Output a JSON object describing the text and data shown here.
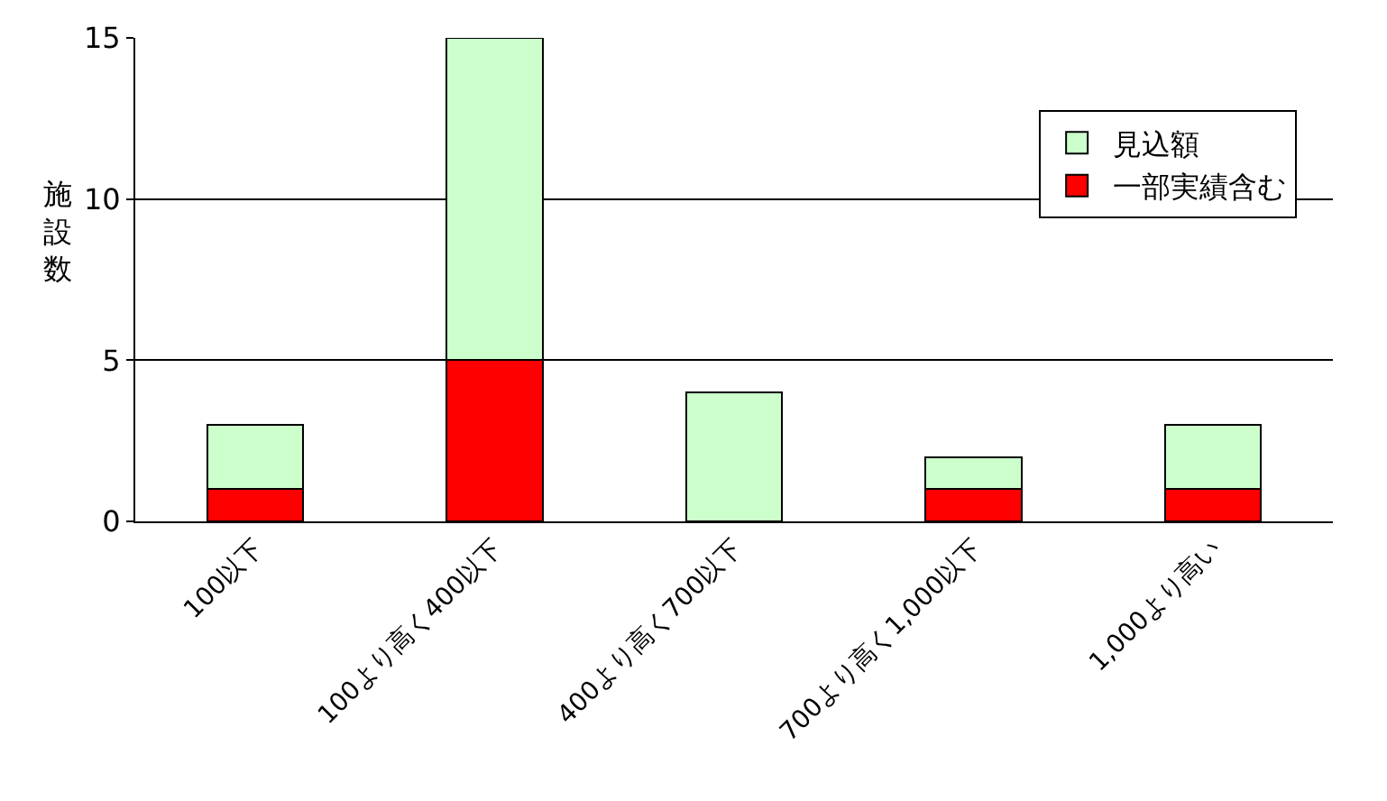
{
  "chart_data": {
    "type": "bar",
    "stacked": true,
    "ylabel": "施設数",
    "categories": [
      "100以下",
      "100より高く400以下",
      "400より高く700以下",
      "700より高く1,000以下",
      "1,000より高い"
    ],
    "series": [
      {
        "name": "一部実績含む",
        "color": "#ff0000",
        "values": [
          1,
          5,
          0,
          1,
          1
        ]
      },
      {
        "name": "見込額",
        "color": "#ccffcc",
        "values": [
          2,
          10,
          4,
          1,
          2
        ]
      }
    ],
    "ylim": [
      0,
      15
    ],
    "yticks": [
      0,
      5,
      10,
      15
    ],
    "grid": "y",
    "legend": "top right"
  }
}
